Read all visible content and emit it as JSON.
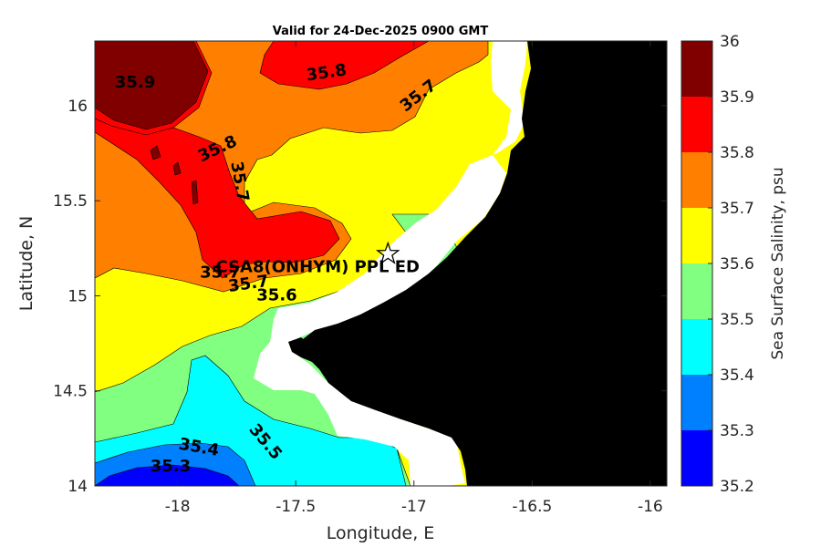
{
  "chart_data": {
    "type": "contour",
    "title": "Valid for 24-Dec-2025 0900 GMT",
    "xlabel": "Longitude, E",
    "ylabel": "Latitude, N",
    "xlim": [
      -18.35,
      -15.93
    ],
    "ylim": [
      14.0,
      16.34
    ],
    "xticks": [
      -18,
      -17.5,
      -17,
      -16.5,
      -16
    ],
    "xtick_labels": [
      "-18",
      "-17.5",
      "-17",
      "-16.5",
      "-16"
    ],
    "yticks": [
      14,
      14.5,
      15,
      15.5,
      16
    ],
    "ytick_labels": [
      "14",
      "14.5",
      "15",
      "15.5",
      "16"
    ],
    "colorbar": {
      "label": "Sea Surface Salinity, psu",
      "range": [
        35.2,
        36.0
      ],
      "ticks": [
        35.2,
        35.3,
        35.4,
        35.5,
        35.6,
        35.7,
        35.8,
        35.9,
        36.0
      ],
      "tick_labels": [
        "35.2",
        "35.3",
        "35.4",
        "35.5",
        "35.6",
        "35.7",
        "35.8",
        "35.9",
        "36"
      ],
      "colors": [
        "#0000ff",
        "#0080ff",
        "#00ffff",
        "#80ff80",
        "#ffff00",
        "#ff8000",
        "#ff0000",
        "#800000"
      ]
    },
    "contour_labels": [
      {
        "text": "35.9",
        "lon": -18.18,
        "lat": 16.12,
        "angle": 0
      },
      {
        "text": "35.8",
        "lon": -17.37,
        "lat": 16.17,
        "angle": -8
      },
      {
        "text": "35.7",
        "lon": -16.98,
        "lat": 16.05,
        "angle": -38
      },
      {
        "text": "35.8",
        "lon": -17.83,
        "lat": 15.77,
        "angle": -25
      },
      {
        "text": "35.7",
        "lon": -17.74,
        "lat": 15.6,
        "angle": 80
      },
      {
        "text": "35.7",
        "lon": -17.7,
        "lat": 15.06,
        "angle": -8
      },
      {
        "text": "35.6",
        "lon": -17.58,
        "lat": 15.0,
        "angle": 0
      },
      {
        "text": "35.5",
        "lon": -17.63,
        "lat": 14.23,
        "angle": 50
      },
      {
        "text": "35.4",
        "lon": -17.91,
        "lat": 14.2,
        "angle": 10
      },
      {
        "text": "35.3",
        "lon": -18.03,
        "lat": 14.1,
        "angle": 0
      },
      {
        "text": "35.7",
        "lon": -17.82,
        "lat": 15.12,
        "angle": 0
      }
    ],
    "station": {
      "name": "CSA8(ONHYM) PPL ED",
      "lon": -17.11,
      "lat": 15.22,
      "marker": "star"
    },
    "land_color": "#000000",
    "masked_color": "#ffffff"
  }
}
